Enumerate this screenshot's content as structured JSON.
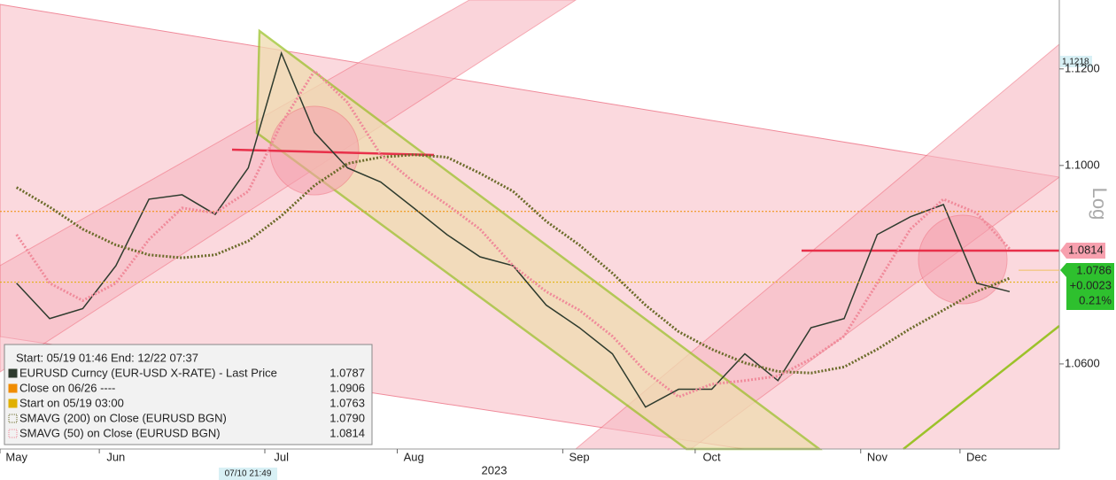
{
  "chart_data": {
    "type": "line",
    "log_scale": true,
    "year_label": "2023",
    "cursor_label": "07/10 21:49",
    "scale_label": "Log",
    "max_tag": "1.1218",
    "line_tag": "1.0814",
    "price_box": [
      "1.0786",
      "+0.0023",
      "0.21%"
    ],
    "legend_title": "Start: 05/19 01:46 End: 12/22 07:37",
    "categories": [
      "May",
      null,
      null,
      "Jun",
      null,
      null,
      null,
      null,
      "Jul",
      null,
      null,
      null,
      "Aug",
      null,
      null,
      null,
      null,
      "Sep",
      null,
      null,
      null,
      "Oct",
      null,
      null,
      null,
      null,
      "Nov",
      null,
      null,
      "Dec",
      null,
      null
    ],
    "ylim": [
      1.0433,
      1.1345
    ],
    "yticks": [
      {
        "value": 1.06,
        "label": "1.0600"
      },
      {
        "value": 1.1,
        "label": "1.1000"
      },
      {
        "value": 1.12,
        "label": "1.1200"
      }
    ],
    "series": [
      {
        "name": "EURUSD Curncy (EUR-USD X-RATE) - Last Price",
        "color": "#2e3b2e",
        "last": 1.0787,
        "values": [
          1.0761,
          1.069,
          1.071,
          1.0796,
          1.0931,
          1.094,
          1.09,
          1.0995,
          1.1233,
          1.1068,
          1.0995,
          1.0966,
          1.0913,
          1.0859,
          1.0814,
          1.0796,
          1.0717,
          1.0672,
          1.062,
          1.0515,
          1.055,
          1.055,
          1.062,
          1.0567,
          1.0672,
          1.069,
          1.0859,
          1.0895,
          1.092,
          1.0761,
          1.0744,
          null
        ]
      },
      {
        "name": "Close on 06/26 ----",
        "color": "#f08c00",
        "value": 1.0906,
        "last": 1.0906
      },
      {
        "name": "Start on 05/19 03:00",
        "color": "#e0b000",
        "value": 1.0763,
        "last": 1.0763
      },
      {
        "name": "SMAVG (200)  on Close (EURUSD BGN)",
        "color": "#6b6b2a",
        "last": 1.079,
        "last_label": "1.0790",
        "values": [
          1.0955,
          1.0915,
          1.087,
          1.0838,
          1.0818,
          1.0812,
          1.0818,
          1.0846,
          1.0897,
          1.0959,
          1.1004,
          1.1017,
          1.1022,
          1.1017,
          1.0984,
          1.0947,
          1.0886,
          1.0838,
          1.0781,
          1.0717,
          1.0664,
          1.0629,
          1.0602,
          1.0585,
          1.0582,
          1.0594,
          1.0629,
          1.067,
          1.0707,
          1.0744,
          1.0771,
          null
        ]
      },
      {
        "name": "SMAVG (50)  on Close (EURUSD BGN)",
        "color": "#f08a9a",
        "last": 1.0814,
        "values": [
          1.0859,
          1.0761,
          1.0726,
          1.0761,
          1.0849,
          1.0913,
          1.0903,
          1.0947,
          1.1086,
          1.1196,
          1.113,
          1.1022,
          1.0966,
          1.092,
          1.087,
          1.0796,
          1.0744,
          1.0707,
          1.0655,
          1.0585,
          1.0535,
          1.056,
          1.0567,
          1.0576,
          1.061,
          1.0655,
          1.0761,
          1.087,
          1.0931,
          1.0903,
          1.083,
          null
        ]
      }
    ]
  }
}
